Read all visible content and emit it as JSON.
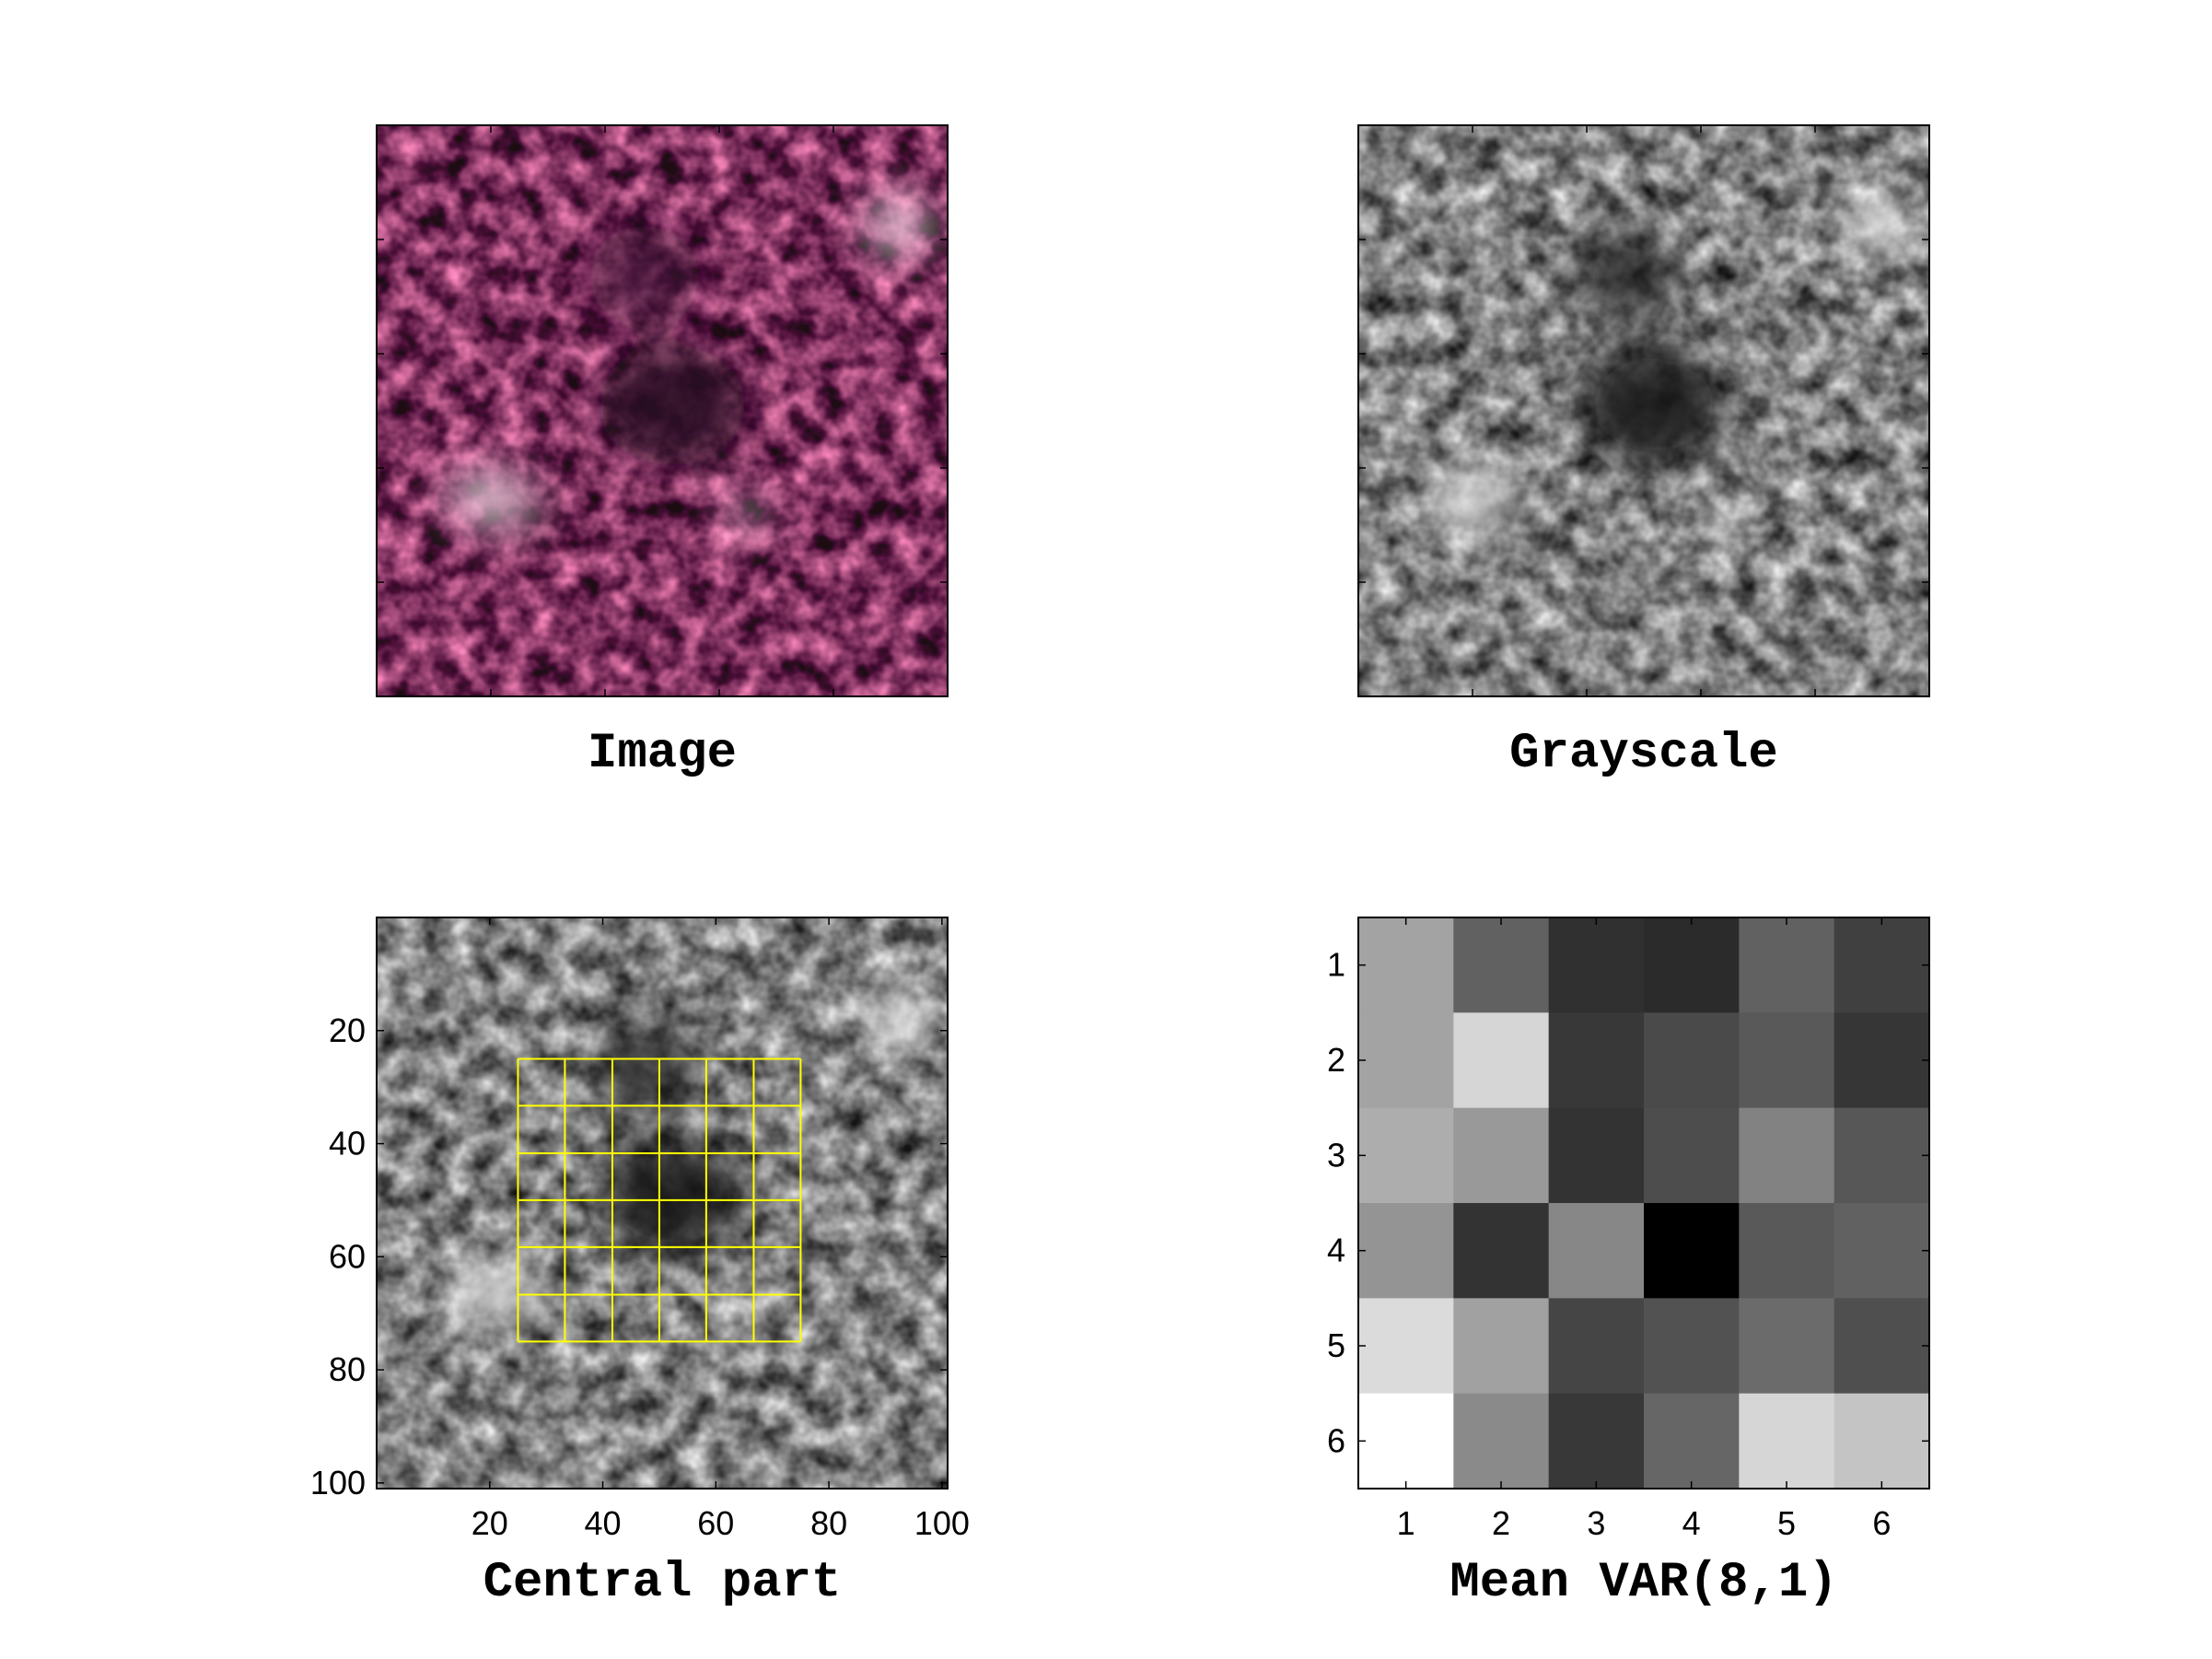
{
  "panels": {
    "image": {
      "title": "Image"
    },
    "grayscale": {
      "title": "Grayscale"
    },
    "central": {
      "title": "Central part"
    },
    "mean": {
      "title": "Mean VAR(8,1)"
    }
  },
  "chart_data": [
    {
      "type": "image",
      "title": "Image",
      "ticks_labeled": false,
      "colors": {
        "base": "#c85a82",
        "dark": "#3a1030",
        "light": "#f2d4e2"
      }
    },
    {
      "type": "image",
      "title": "Grayscale",
      "ticks_labeled": false
    },
    {
      "type": "image",
      "title": "Central part",
      "xlim": [
        0,
        101
      ],
      "ylim": [
        101,
        0
      ],
      "xticks": [
        20,
        40,
        60,
        80,
        100
      ],
      "yticks": [
        20,
        40,
        60,
        80,
        100
      ],
      "grid_overlay": {
        "color": "#ffff00",
        "x_lines": [
          25,
          33.3,
          41.7,
          50,
          58.3,
          66.7,
          75
        ],
        "y_lines": [
          25,
          33.3,
          41.7,
          50,
          58.3,
          66.7,
          75
        ]
      }
    },
    {
      "type": "heatmap",
      "title": "Mean VAR(8,1)",
      "x": [
        1,
        2,
        3,
        4,
        5,
        6
      ],
      "y": [
        1,
        2,
        3,
        4,
        5,
        6
      ],
      "colormap": "gray",
      "values": [
        [
          0.64,
          0.38,
          0.19,
          0.17,
          0.38,
          0.25
        ],
        [
          0.64,
          0.84,
          0.22,
          0.29,
          0.35,
          0.21
        ],
        [
          0.68,
          0.6,
          0.2,
          0.3,
          0.51,
          0.34
        ],
        [
          0.58,
          0.2,
          0.53,
          0.0,
          0.35,
          0.38
        ],
        [
          0.86,
          0.63,
          0.27,
          0.32,
          0.42,
          0.31
        ],
        [
          1.0,
          0.54,
          0.22,
          0.4,
          0.84,
          0.77
        ]
      ]
    }
  ]
}
